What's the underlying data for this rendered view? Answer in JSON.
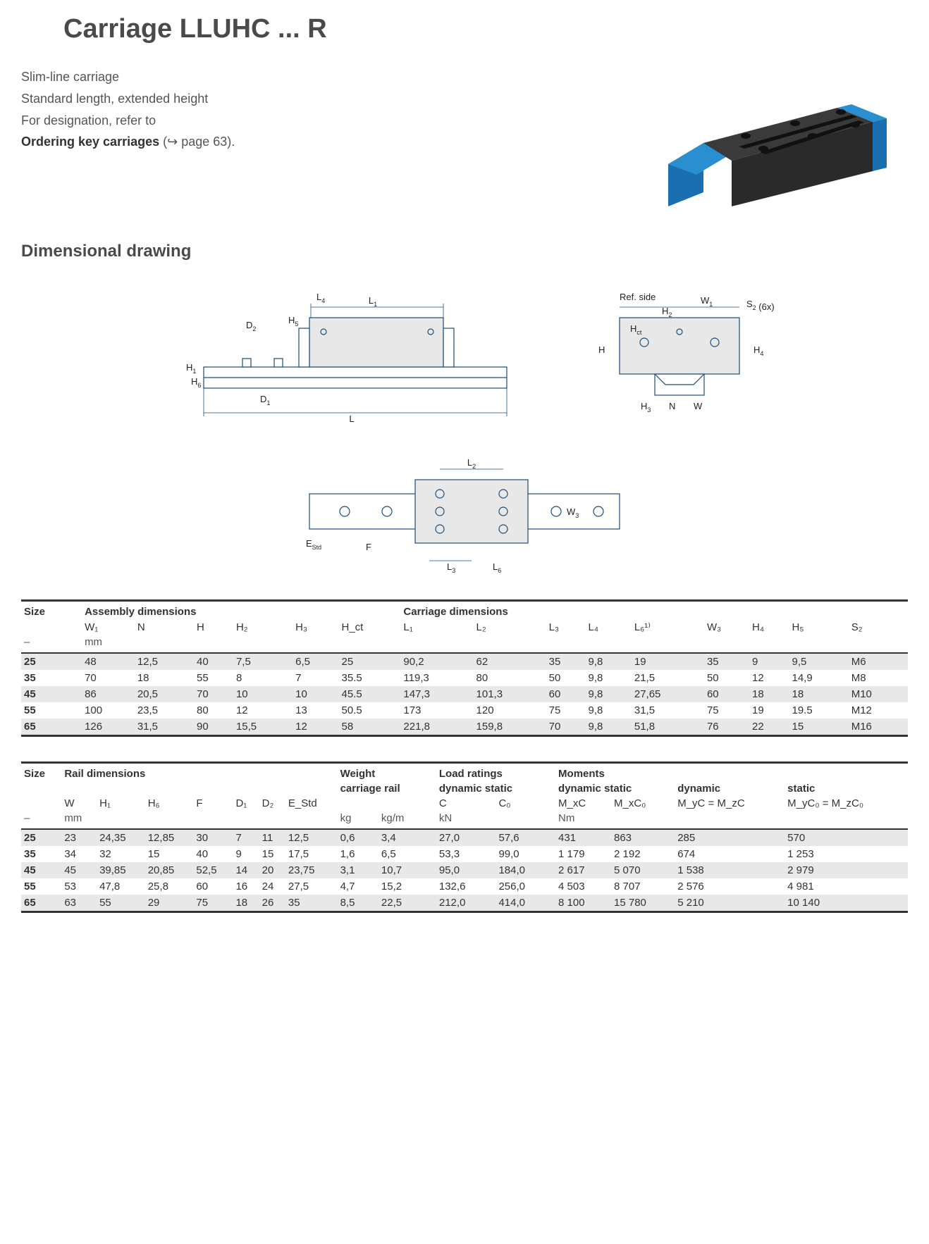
{
  "title": "Carriage LLUHC ... R",
  "desc": {
    "line1": "Slim-line carriage",
    "line2": "Standard length, extended height",
    "line3": "For designation, refer to",
    "line4a": "Ordering key carriages",
    "line4b": " (↪ page 63)."
  },
  "section_heading": "Dimensional drawing",
  "drawing_labels": {
    "L1": "L₁",
    "L4": "L₄",
    "H5": "H₅",
    "D2": "D₂",
    "H1": "H₁",
    "H6": "H₆",
    "D1": "D₁",
    "L": "L",
    "L2": "L₂",
    "W3": "W₃",
    "EStd": "E_Std",
    "F": "F",
    "L3": "L₃",
    "L6": "L₆",
    "RefSide": "Ref. side",
    "W1": "W₁",
    "S2": "S₂ (6x)",
    "H2": "H₂",
    "H": "H",
    "Hct": "H_ct",
    "H4": "H₄",
    "N": "N",
    "W": "W",
    "H3": "H₃"
  },
  "table1": {
    "headers": {
      "size": "Size",
      "group1": "Assembly dimensions",
      "group2": "Carriage dimensions",
      "unit_col1": "–",
      "unit_mm": "mm",
      "cols": [
        "W₁",
        "N",
        "H",
        "H₂",
        "H₃",
        "H_ct",
        "L₁",
        "L₂",
        "L₃",
        "L₄",
        "L₆¹⁾",
        "W₃",
        "H₄",
        "H₅",
        "S₂"
      ]
    },
    "rows": [
      {
        "size": "25",
        "v": [
          "48",
          "12,5",
          "40",
          "7,5",
          "6,5",
          "25",
          "90,2",
          "62",
          "35",
          "9,8",
          "19",
          "35",
          "9",
          "9,5",
          "M6"
        ]
      },
      {
        "size": "35",
        "v": [
          "70",
          "18",
          "55",
          "8",
          "7",
          "35.5",
          "119,3",
          "80",
          "50",
          "9,8",
          "21,5",
          "50",
          "12",
          "14,9",
          "M8"
        ]
      },
      {
        "size": "45",
        "v": [
          "86",
          "20,5",
          "70",
          "10",
          "10",
          "45.5",
          "147,3",
          "101,3",
          "60",
          "9,8",
          "27,65",
          "60",
          "18",
          "18",
          "M10"
        ]
      },
      {
        "size": "55",
        "v": [
          "100",
          "23,5",
          "80",
          "12",
          "13",
          "50.5",
          "173",
          "120",
          "75",
          "9,8",
          "31,5",
          "75",
          "19",
          "19.5",
          "M12"
        ]
      },
      {
        "size": "65",
        "v": [
          "126",
          "31,5",
          "90",
          "15,5",
          "12",
          "58",
          "221,8",
          "159,8",
          "70",
          "9,8",
          "51,8",
          "76",
          "22",
          "15",
          "M16"
        ]
      }
    ]
  },
  "table2": {
    "headers": {
      "size": "Size",
      "g_rail": "Rail dimensions",
      "g_weight": "Weight",
      "g_weight_sub": "carriage  rail",
      "g_load": "Load ratings",
      "g_load_sub": "dynamic static",
      "g_mom": "Moments",
      "g_mom_sub1": "dynamic static",
      "g_mom_sub2": "dynamic",
      "g_mom_sub3": "static",
      "cols_rail": [
        "W",
        "H₁",
        "H₆",
        "F",
        "D₁",
        "D₂",
        "E_Std"
      ],
      "cols_weight": [
        "",
        "",
        ""
      ],
      "cols_load": [
        "C",
        "C₀"
      ],
      "cols_mom": [
        "M_xC",
        "M_xC₀",
        "M_yC = M_zC",
        "M_yC₀ = M_zC₀"
      ],
      "unit_dash": "–",
      "unit_mm": "mm",
      "unit_kg": "kg",
      "unit_kgm": "kg/m",
      "unit_kN": "kN",
      "unit_Nm": "Nm"
    },
    "rows": [
      {
        "size": "25",
        "v": [
          "23",
          "24,35",
          "12,85",
          "30",
          "7",
          "11",
          "12,5",
          "0,6",
          "3,4",
          "27,0",
          "57,6",
          "431",
          "863",
          "285",
          "570"
        ]
      },
      {
        "size": "35",
        "v": [
          "34",
          "32",
          "15",
          "40",
          "9",
          "15",
          "17,5",
          "1,6",
          "6,5",
          "53,3",
          "99,0",
          "1 179",
          "2 192",
          "674",
          "1 253"
        ]
      },
      {
        "size": "45",
        "v": [
          "45",
          "39,85",
          "20,85",
          "52,5",
          "14",
          "20",
          "23,75",
          "3,1",
          "10,7",
          "95,0",
          "184,0",
          "2 617",
          "5 070",
          "1 538",
          "2 979"
        ]
      },
      {
        "size": "55",
        "v": [
          "53",
          "47,8",
          "25,8",
          "60",
          "16",
          "24",
          "27,5",
          "4,7",
          "15,2",
          "132,6",
          "256,0",
          "4 503",
          "8 707",
          "2 576",
          "4 981"
        ]
      },
      {
        "size": "65",
        "v": [
          "63",
          "55",
          "29",
          "75",
          "18",
          "26",
          "35",
          "8,5",
          "22,5",
          "212,0",
          "414,0",
          "8 100",
          "15 780",
          "5 210",
          "10 140"
        ]
      }
    ]
  },
  "colors": {
    "carriage_body": "#2a2a2a",
    "carriage_end": "#1a6fb0",
    "drawing_stroke": "#1a4d7a",
    "drawing_fill": "#d8d8d8"
  }
}
